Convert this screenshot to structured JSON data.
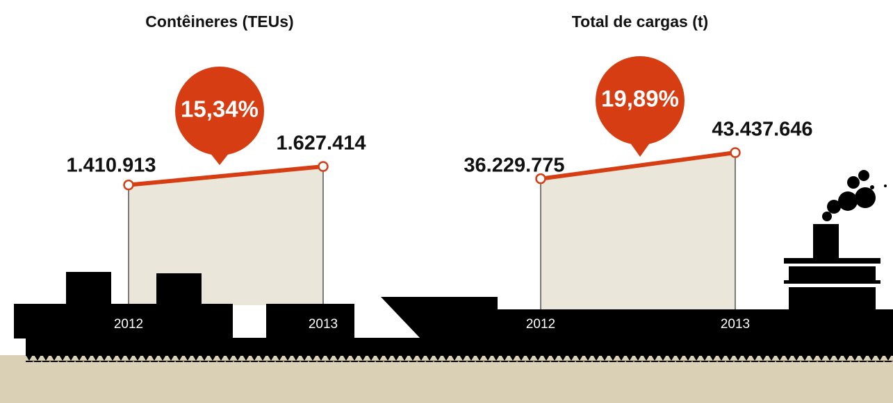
{
  "chart_data": [
    {
      "type": "line",
      "title": "Contêineres (TEUs)",
      "categories": [
        "2012",
        "2013"
      ],
      "values": [
        1410913,
        1627414
      ],
      "value_labels": [
        "1.410.913",
        "1.627.414"
      ],
      "annotation": "15,34%",
      "color": "#d63d12"
    },
    {
      "type": "line",
      "title": "Total de cargas (t)",
      "categories": [
        "2012",
        "2013"
      ],
      "values": [
        36229775,
        43437646
      ],
      "value_labels": [
        "36.229.775",
        "43.437.646"
      ],
      "annotation": "19,89%",
      "color": "#d63d12"
    }
  ]
}
